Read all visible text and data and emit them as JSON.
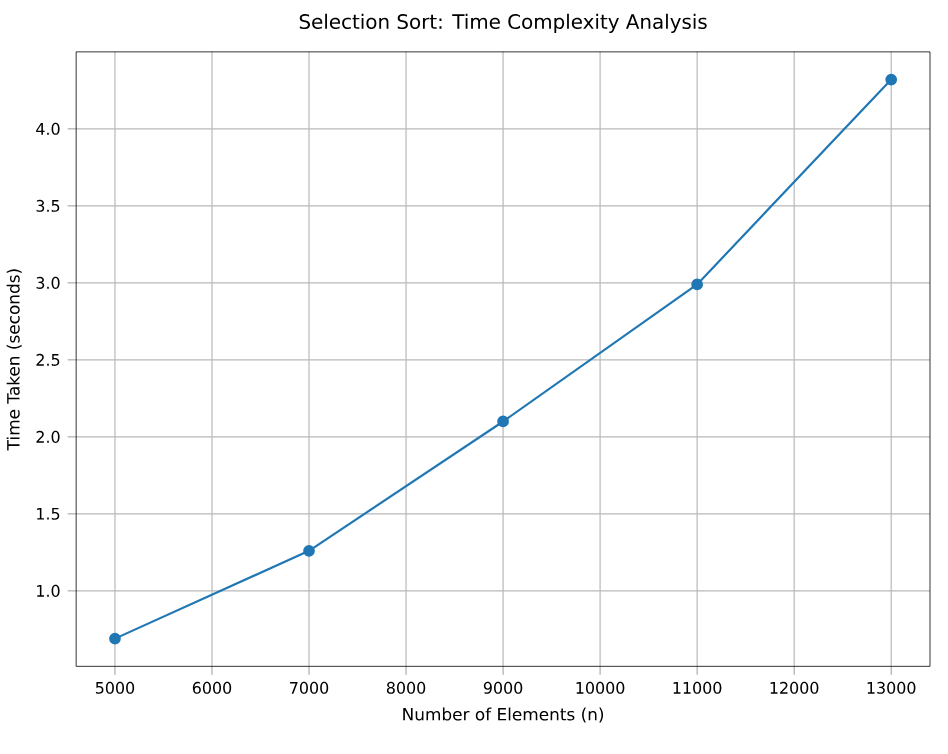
{
  "chart_data": {
    "type": "line",
    "title": "Selection Sort: Time Complexity Analysis",
    "xlabel": "Number of Elements (n)",
    "ylabel": "Time Taken (seconds)",
    "x": [
      5000,
      7000,
      9000,
      11000,
      13000
    ],
    "series": [
      {
        "color": "#1f77b4",
        "values": [
          0.69,
          1.26,
          2.1,
          2.99,
          4.32
        ]
      }
    ],
    "xlim": [
      4600,
      13400
    ],
    "xticks": [
      5000,
      6000,
      7000,
      8000,
      9000,
      10000,
      11000,
      12000,
      13000
    ],
    "ylim": [
      0.51,
      4.5
    ],
    "yticks": [
      {
        "value": 1,
        "label": "1.0"
      },
      1.5,
      {
        "value": 2,
        "label": "2.0"
      },
      2.5,
      {
        "value": 3,
        "label": "3.0"
      },
      3.5,
      {
        "value": 4,
        "label": "4.0"
      }
    ],
    "grid": true,
    "marker": "circle",
    "line_style": "solid"
  }
}
